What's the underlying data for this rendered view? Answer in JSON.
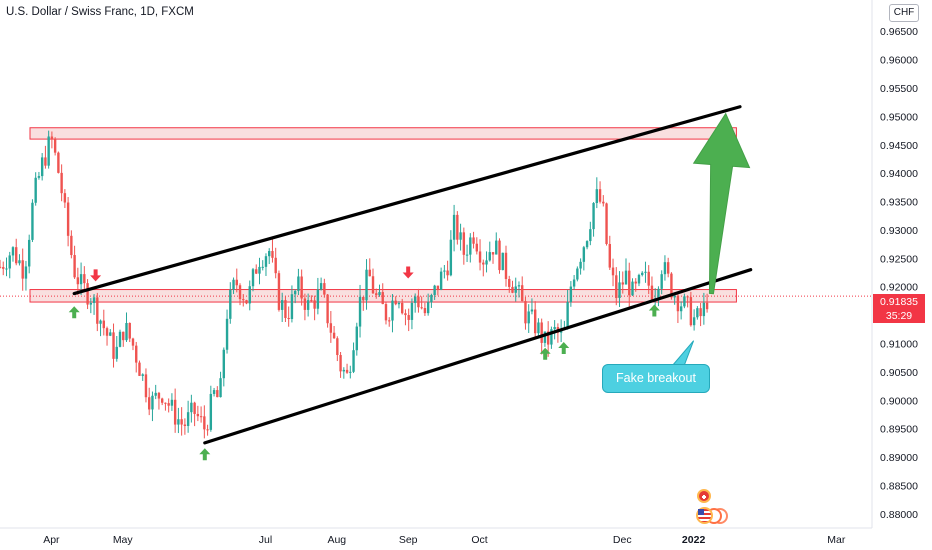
{
  "header": {
    "title": "U.S. Dollar / Swiss Franc, 1D, FXCM",
    "currency": "CHF"
  },
  "price_tag": {
    "price": "0.91835",
    "countdown": "35:29"
  },
  "annotation": {
    "text": "Fake breakout"
  },
  "colors": {
    "up": "#26a69a",
    "down": "#ef5350",
    "zone_fill": "#f8d7d7",
    "zone_stroke": "#f23645",
    "trendline": "#000000",
    "arrow": "#4caf50",
    "marker_up": "#4caf50",
    "marker_down": "#f23645"
  },
  "chart_data": {
    "type": "candlestick",
    "title": "U.S. Dollar / Swiss Franc, 1D, FXCM",
    "ylim": [
      0.8775,
      0.9705
    ],
    "y_ticks": [
      "0.96500",
      "0.96000",
      "0.95500",
      "0.95000",
      "0.94500",
      "0.94000",
      "0.93500",
      "0.93000",
      "0.92500",
      "0.92000",
      "0.91500",
      "0.91000",
      "0.90500",
      "0.90000",
      "0.89500",
      "0.89000",
      "0.88500",
      "0.88000"
    ],
    "x_ticks": [
      {
        "label": "Apr",
        "month_index": 0
      },
      {
        "label": "May",
        "month_index": 1
      },
      {
        "label": "Jul",
        "month_index": 3
      },
      {
        "label": "Aug",
        "month_index": 4
      },
      {
        "label": "Sep",
        "month_index": 5
      },
      {
        "label": "Oct",
        "month_index": 6
      },
      {
        "label": "Dec",
        "month_index": 8
      },
      {
        "label": "2022",
        "month_index": 9
      },
      {
        "label": "Mar",
        "month_index": 11
      }
    ],
    "x_range_months": [
      -0.72,
      11.5
    ],
    "close_path": [
      [
        -0.72,
        0.9235
      ],
      [
        -0.55,
        0.9265
      ],
      [
        -0.38,
        0.923
      ],
      [
        -0.25,
        0.9355
      ],
      [
        -0.12,
        0.942
      ],
      [
        0.0,
        0.946
      ],
      [
        0.12,
        0.939
      ],
      [
        0.22,
        0.93
      ],
      [
        0.32,
        0.923
      ],
      [
        0.42,
        0.92
      ],
      [
        0.55,
        0.9185
      ],
      [
        0.65,
        0.9155
      ],
      [
        0.78,
        0.9115
      ],
      [
        0.9,
        0.908
      ],
      [
        1.02,
        0.913
      ],
      [
        1.15,
        0.9095
      ],
      [
        1.28,
        0.904
      ],
      [
        1.4,
        0.8995
      ],
      [
        1.55,
        0.9015
      ],
      [
        1.7,
        0.898
      ],
      [
        1.85,
        0.8955
      ],
      [
        2.0,
        0.898
      ],
      [
        2.15,
        0.895
      ],
      [
        2.28,
        0.901
      ],
      [
        2.36,
        0.9
      ],
      [
        2.45,
        0.915
      ],
      [
        2.58,
        0.921
      ],
      [
        2.75,
        0.9175
      ],
      [
        2.9,
        0.925
      ],
      [
        3.05,
        0.9265
      ],
      [
        3.18,
        0.918
      ],
      [
        3.3,
        0.915
      ],
      [
        3.45,
        0.92
      ],
      [
        3.6,
        0.9165
      ],
      [
        3.78,
        0.919
      ],
      [
        3.95,
        0.911
      ],
      [
        4.05,
        0.906
      ],
      [
        4.15,
        0.904
      ],
      [
        4.3,
        0.9165
      ],
      [
        4.45,
        0.922
      ],
      [
        4.55,
        0.918
      ],
      [
        4.7,
        0.915
      ],
      [
        4.85,
        0.9195
      ],
      [
        5.0,
        0.914
      ],
      [
        5.1,
        0.9185
      ],
      [
        5.25,
        0.915
      ],
      [
        5.4,
        0.92
      ],
      [
        5.55,
        0.924
      ],
      [
        5.65,
        0.931
      ],
      [
        5.78,
        0.926
      ],
      [
        5.92,
        0.9295
      ],
      [
        6.05,
        0.925
      ],
      [
        6.2,
        0.9275
      ],
      [
        6.35,
        0.923
      ],
      [
        6.5,
        0.92
      ],
      [
        6.65,
        0.915
      ],
      [
        6.8,
        0.913
      ],
      [
        6.92,
        0.91
      ],
      [
        7.05,
        0.912
      ],
      [
        7.18,
        0.911
      ],
      [
        7.3,
        0.922
      ],
      [
        7.42,
        0.926
      ],
      [
        7.52,
        0.93
      ],
      [
        7.62,
        0.936
      ],
      [
        7.72,
        0.9345
      ],
      [
        7.82,
        0.923
      ],
      [
        7.92,
        0.9185
      ],
      [
        8.05,
        0.922
      ],
      [
        8.15,
        0.9185
      ],
      [
        8.3,
        0.9215
      ],
      [
        8.45,
        0.919
      ],
      [
        8.55,
        0.924
      ],
      [
        8.68,
        0.92
      ],
      [
        8.8,
        0.9175
      ],
      [
        8.92,
        0.916
      ],
      [
        9.02,
        0.914
      ],
      [
        9.12,
        0.915
      ],
      [
        9.2,
        0.9183
      ]
    ],
    "resistance_zone": {
      "y_low": 0.946,
      "y_high": 0.948,
      "x_start": -0.72,
      "x_end": 9.6
    },
    "support_zone": {
      "y_low": 0.9173,
      "y_high": 0.9195,
      "x_start": -0.72,
      "x_end": 9.6
    },
    "trendlines": [
      {
        "name": "upper",
        "points": [
          [
            0.32,
            0.9188
          ],
          [
            9.65,
            0.9517
          ]
        ]
      },
      {
        "name": "lower",
        "points": [
          [
            2.15,
            0.8925
          ],
          [
            9.8,
            0.923
          ]
        ]
      }
    ],
    "forecast_arrow": {
      "from": [
        9.25,
        0.9188
      ],
      "to": [
        9.45,
        0.9505
      ]
    },
    "markers": [
      {
        "type": "up",
        "x": 0.32,
        "y": 0.9155
      },
      {
        "type": "down",
        "x": 0.62,
        "y": 0.922
      },
      {
        "type": "up",
        "x": 2.15,
        "y": 0.8905
      },
      {
        "type": "down",
        "x": 5.0,
        "y": 0.9225
      },
      {
        "type": "up",
        "x": 6.92,
        "y": 0.9082
      },
      {
        "type": "up",
        "x": 7.18,
        "y": 0.9092
      },
      {
        "type": "up",
        "x": 8.45,
        "y": 0.9158
      }
    ],
    "annotation_point": [
      9.0,
      0.9105
    ],
    "last_price": 0.91835
  }
}
